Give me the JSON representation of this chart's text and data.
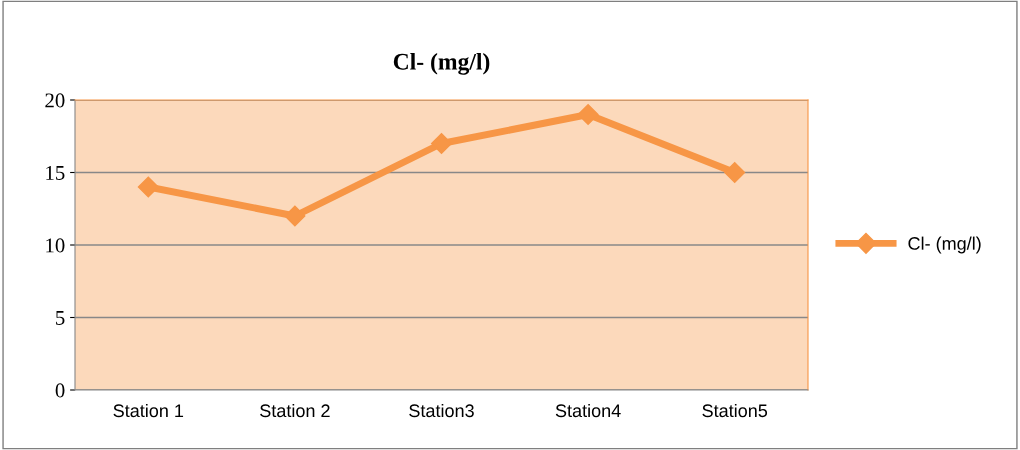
{
  "chart_data": {
    "type": "line",
    "title": "Cl- (mg/l)",
    "categories": [
      "Station 1",
      "Station 2",
      "Station3",
      "Station4",
      "Station5"
    ],
    "series": [
      {
        "name": "Cl- (mg/l)",
        "color": "#f79646",
        "values": [
          14,
          12,
          17,
          19,
          15
        ]
      }
    ],
    "ylim": [
      0,
      20
    ],
    "yticks": [
      0,
      5,
      10,
      15,
      20
    ],
    "grid": "y",
    "legend": "right",
    "marker": "diamond",
    "line_style": "solid"
  }
}
